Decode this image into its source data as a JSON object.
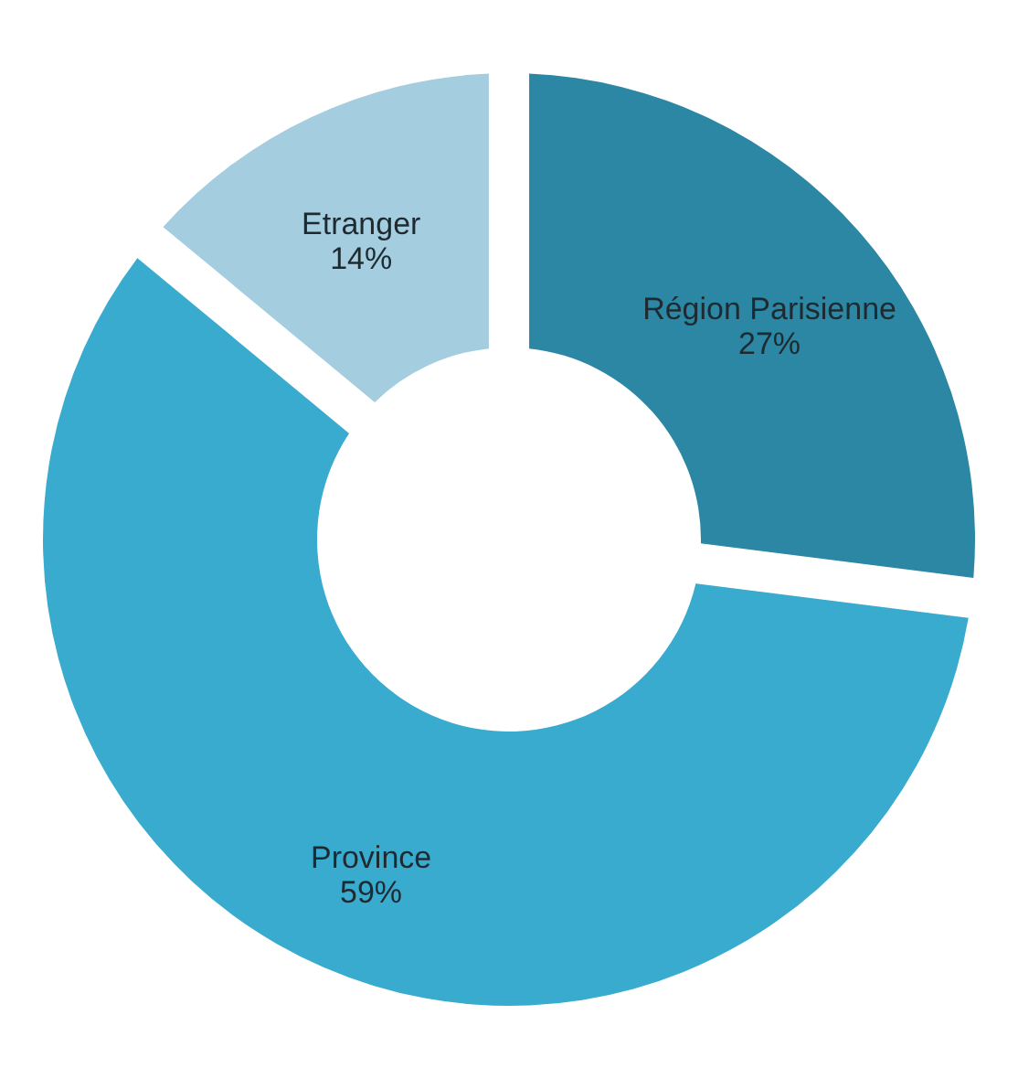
{
  "chart_data": {
    "type": "donut",
    "categories": [
      "Région Parisienne",
      "Province",
      "Etranger"
    ],
    "values": [
      27,
      59,
      14
    ],
    "value_labels": [
      "27%",
      "59%",
      "14%"
    ],
    "colors": [
      "#2b87a3",
      "#38abcf",
      "#a4cde0"
    ]
  }
}
